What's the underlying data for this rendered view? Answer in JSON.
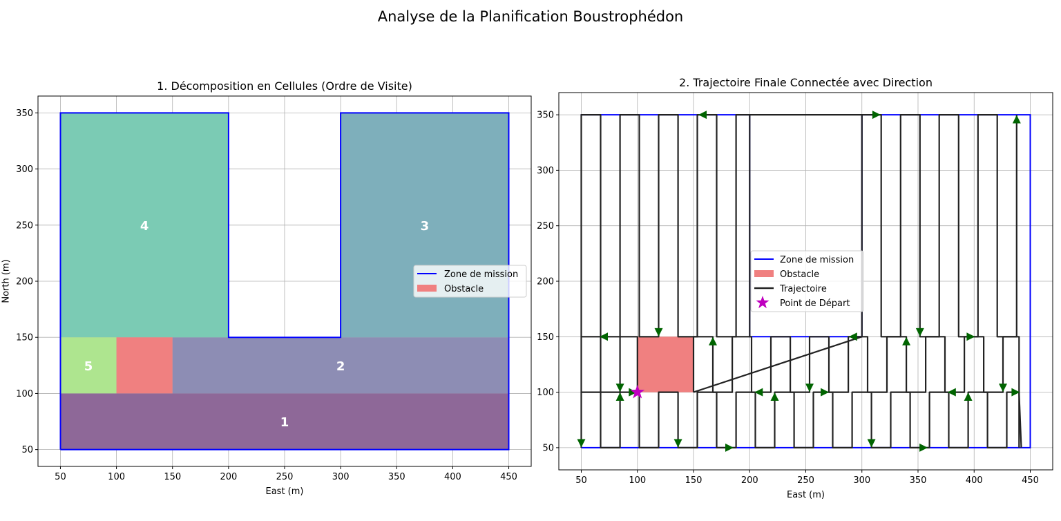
{
  "figure": {
    "suptitle": "Analyse de la Planification Boustrophédon"
  },
  "colors": {
    "boundary": "#0000ff",
    "obstacle": "#f08080",
    "trajectory": "#222222",
    "arrow": "#006400",
    "start": "#bf00bf",
    "grid": "#b0b0b0",
    "cell_1": "#8e6898",
    "cell_2": "#8d8db4",
    "cell_3": "#7eafbb",
    "cell_4": "#7bcbb4",
    "cell_5": "#aee58f"
  },
  "chart_data": [
    {
      "type": "area",
      "title": "1. Décomposition en Cellules (Ordre de Visite)",
      "xlabel": "East (m)",
      "ylabel": "North (m)",
      "xlim": [
        30,
        470
      ],
      "ylim": [
        35,
        365
      ],
      "xticks": [
        50,
        100,
        150,
        200,
        250,
        300,
        350,
        400,
        450
      ],
      "yticks": [
        50,
        100,
        150,
        200,
        250,
        300,
        350
      ],
      "grid": true,
      "legend_position": "center-right",
      "legend": [
        "Zone de mission",
        "Obstacle"
      ],
      "mission_zone": [
        [
          50,
          50
        ],
        [
          450,
          50
        ],
        [
          450,
          350
        ],
        [
          300,
          350
        ],
        [
          300,
          150
        ],
        [
          200,
          150
        ],
        [
          200,
          350
        ],
        [
          50,
          350
        ],
        [
          50,
          50
        ]
      ],
      "obstacle": [
        [
          100,
          100
        ],
        [
          150,
          100
        ],
        [
          150,
          150
        ],
        [
          100,
          150
        ]
      ],
      "cells": [
        {
          "label": "1",
          "polygon": [
            [
              50,
              50
            ],
            [
              450,
              50
            ],
            [
              450,
              100
            ],
            [
              50,
              100
            ]
          ],
          "label_at": [
            250,
            75
          ]
        },
        {
          "label": "2",
          "polygon": [
            [
              150,
              100
            ],
            [
              450,
              100
            ],
            [
              450,
              150
            ],
            [
              150,
              150
            ]
          ],
          "label_at": [
            300,
            125
          ]
        },
        {
          "label": "3",
          "polygon": [
            [
              300,
              150
            ],
            [
              450,
              150
            ],
            [
              450,
              350
            ],
            [
              300,
              350
            ]
          ],
          "label_at": [
            375,
            250
          ]
        },
        {
          "label": "4",
          "polygon": [
            [
              50,
              150
            ],
            [
              200,
              150
            ],
            [
              200,
              350
            ],
            [
              50,
              350
            ]
          ],
          "label_at": [
            125,
            250
          ]
        },
        {
          "label": "5",
          "polygon": [
            [
              50,
              100
            ],
            [
              100,
              100
            ],
            [
              100,
              150
            ],
            [
              50,
              150
            ]
          ],
          "label_at": [
            75,
            125
          ]
        }
      ]
    },
    {
      "type": "line",
      "title": "2. Trajectoire Finale Connectée avec Direction",
      "xlabel": "East (m)",
      "ylabel": "",
      "xlim": [
        30,
        470
      ],
      "ylim": [
        30,
        370
      ],
      "xticks": [
        50,
        100,
        150,
        200,
        250,
        300,
        350,
        400,
        450
      ],
      "yticks": [
        50,
        100,
        150,
        200,
        250,
        300,
        350
      ],
      "grid": true,
      "legend_position": "center",
      "legend": [
        "Zone de mission",
        "Obstacle",
        "Trajectoire",
        "Point de Départ"
      ],
      "mission_zone": [
        [
          50,
          50
        ],
        [
          450,
          50
        ],
        [
          450,
          350
        ],
        [
          300,
          350
        ],
        [
          300,
          150
        ],
        [
          200,
          150
        ],
        [
          200,
          350
        ],
        [
          50,
          350
        ],
        [
          50,
          50
        ]
      ],
      "obstacle": [
        [
          100,
          100
        ],
        [
          150,
          100
        ],
        [
          150,
          150
        ],
        [
          100,
          150
        ]
      ],
      "start_point": [
        100,
        100
      ],
      "sweep_passes": [
        {
          "ymin": 50,
          "ymax": 100,
          "xs": [
            50,
            67.2,
            84.5,
            101.7,
            118.9,
            136.2,
            153.4,
            170.6,
            187.9,
            205.1,
            222.3,
            239.6,
            256.8,
            274,
            291.3,
            308.5,
            325.7,
            343,
            360.2,
            377.4,
            394.7,
            411.9,
            429.1,
            440
          ]
        },
        {
          "ymin": 100,
          "ymax": 150,
          "xs": [
            150,
            167.2,
            184.5,
            201.7,
            218.9,
            236.2,
            253.4,
            270.6,
            287.9,
            305.1,
            322.3,
            339.6,
            356.8,
            374,
            391.3,
            408.5,
            425.7,
            440
          ]
        },
        {
          "ymin": 150,
          "ymax": 350,
          "xs": [
            300,
            317.2,
            334.5,
            351.7,
            368.9,
            386.2,
            403.4,
            420.6,
            437.9
          ]
        },
        {
          "ymin": 150,
          "ymax": 350,
          "xs": [
            50,
            67.2,
            84.5,
            101.7,
            118.9,
            136.2,
            153.4,
            170.6,
            187.9,
            200
          ]
        },
        {
          "ymin": 100,
          "ymax": 150,
          "xs": [
            50,
            67.2,
            84.5,
            100
          ]
        }
      ],
      "transitions": [
        {
          "from": [
            440,
            100
          ],
          "to": [
            442,
            50
          ]
        },
        {
          "from": [
            150,
            100
          ],
          "to": [
            300,
            150
          ]
        },
        {
          "from": [
            300,
            350
          ],
          "to": [
            200,
            350
          ]
        }
      ],
      "direction_arrows": [
        {
          "x": 50,
          "y": 54,
          "dir": "down"
        },
        {
          "x": 84.5,
          "y": 96,
          "dir": "up"
        },
        {
          "x": 84.5,
          "y": 104,
          "dir": "down"
        },
        {
          "x": 70,
          "y": 150,
          "dir": "left"
        },
        {
          "x": 96,
          "y": 100,
          "dir": "right"
        },
        {
          "x": 118.9,
          "y": 154,
          "dir": "down"
        },
        {
          "x": 136.2,
          "y": 54,
          "dir": "down"
        },
        {
          "x": 167.2,
          "y": 146,
          "dir": "up"
        },
        {
          "x": 182,
          "y": 50,
          "dir": "right"
        },
        {
          "x": 208,
          "y": 100,
          "dir": "left"
        },
        {
          "x": 222.3,
          "y": 96,
          "dir": "up"
        },
        {
          "x": 253.4,
          "y": 104,
          "dir": "down"
        },
        {
          "x": 267,
          "y": 100,
          "dir": "right"
        },
        {
          "x": 292,
          "y": 150,
          "dir": "left"
        },
        {
          "x": 308.5,
          "y": 54,
          "dir": "down"
        },
        {
          "x": 339.6,
          "y": 146,
          "dir": "up"
        },
        {
          "x": 351.7,
          "y": 154,
          "dir": "down"
        },
        {
          "x": 355,
          "y": 50,
          "dir": "right"
        },
        {
          "x": 380,
          "y": 100,
          "dir": "left"
        },
        {
          "x": 394.7,
          "y": 96,
          "dir": "up"
        },
        {
          "x": 397,
          "y": 150,
          "dir": "right"
        },
        {
          "x": 425.7,
          "y": 104,
          "dir": "down"
        },
        {
          "x": 437,
          "y": 100,
          "dir": "right"
        },
        {
          "x": 437.9,
          "y": 346,
          "dir": "up"
        },
        {
          "x": 158,
          "y": 350,
          "dir": "left"
        },
        {
          "x": 313,
          "y": 350,
          "dir": "right"
        }
      ]
    }
  ]
}
